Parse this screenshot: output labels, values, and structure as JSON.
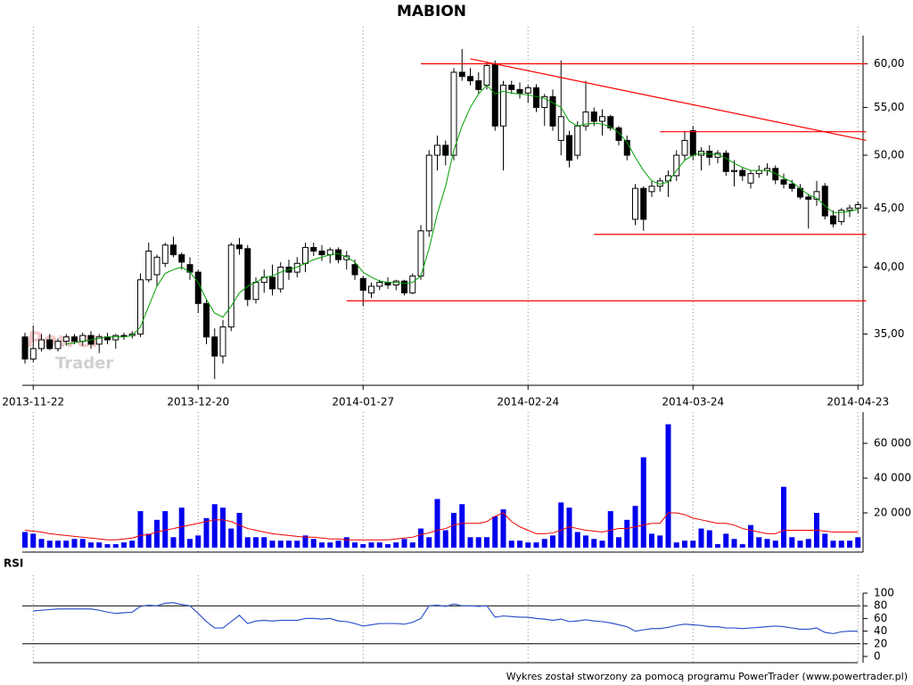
{
  "chart_data": [
    {
      "type": "candlestick",
      "title": "MABION",
      "log_scale": true,
      "ylim": [
        31.6,
        64.6
      ],
      "yticks": [
        {
          "value": 35,
          "label": "35,00"
        },
        {
          "value": 40,
          "label": "40,00"
        },
        {
          "value": 45,
          "label": "45,00"
        },
        {
          "value": 50,
          "label": "50,00"
        },
        {
          "value": 55,
          "label": "55,00"
        },
        {
          "value": 60,
          "label": "60,00"
        }
      ],
      "grid": true,
      "up_color": "#ffffff",
      "down_color": "#000000",
      "categories": [
        null,
        "2013-11-22",
        null,
        null,
        null,
        null,
        null,
        null,
        null,
        null,
        null,
        null,
        null,
        null,
        null,
        null,
        null,
        null,
        null,
        null,
        null,
        "2013-12-20",
        null,
        null,
        null,
        null,
        null,
        null,
        null,
        null,
        null,
        null,
        null,
        null,
        null,
        null,
        null,
        null,
        null,
        null,
        null,
        "2014-01-27",
        null,
        null,
        null,
        null,
        null,
        null,
        null,
        null,
        null,
        null,
        null,
        null,
        null,
        null,
        null,
        null,
        null,
        null,
        null,
        "2014-02-24",
        null,
        null,
        null,
        null,
        null,
        null,
        null,
        null,
        null,
        null,
        null,
        null,
        null,
        null,
        null,
        null,
        null,
        null,
        null,
        "2014-03-24",
        null,
        null,
        null,
        null,
        null,
        null,
        null,
        null,
        null,
        null,
        null,
        null,
        null,
        null,
        null,
        null,
        null,
        null,
        null,
        "2014-04-23"
      ],
      "open": [
        34.8,
        33.3,
        34.0,
        34.6,
        34.0,
        34.5,
        34.8,
        34.5,
        34.9,
        34.3,
        34.8,
        34.6,
        34.9,
        34.9,
        35.0,
        39.0,
        39.4,
        40.3,
        41.8,
        41.0,
        40.2,
        39.6,
        37.2,
        34.8,
        33.5,
        35.5,
        41.8,
        41.5,
        37.5,
        38.8,
        39.2,
        38.3,
        40.0,
        39.6,
        40.3,
        41.6,
        41.3,
        41.0,
        41.4,
        40.6,
        40.2,
        39.1,
        38.0,
        38.5,
        38.8,
        38.6,
        38.9,
        38.0,
        39.3,
        43.0,
        50.0,
        51.0,
        50.0,
        59.0,
        58.5,
        58.0,
        57.5,
        60.0,
        53.0,
        57.5,
        57.0,
        56.6,
        57.2,
        55.0,
        56.2,
        51.5,
        52.0,
        50.0,
        53.0,
        54.5,
        53.5,
        54.0,
        52.8,
        51.5,
        44.0,
        46.8,
        46.5,
        47.0,
        47.5,
        48.0,
        50.0,
        52.5,
        50.0,
        50.4,
        49.8,
        50.2,
        48.4,
        48.5,
        47.3,
        48.2,
        48.5,
        48.7,
        47.6,
        47.2,
        46.8,
        46.0,
        45.8,
        47.0,
        44.3,
        43.8,
        44.8,
        45.0
      ],
      "high": [
        35.1,
        35.6,
        35.0,
        35.0,
        34.7,
        35.0,
        35.0,
        35.1,
        35.2,
        35.0,
        35.1,
        35.0,
        35.1,
        35.2,
        39.5,
        42.0,
        41.0,
        42.0,
        42.5,
        41.2,
        40.8,
        39.8,
        37.5,
        35.4,
        36.0,
        42.0,
        42.4,
        41.8,
        39.2,
        39.8,
        40.2,
        40.4,
        40.6,
        40.8,
        42.0,
        42.0,
        41.8,
        41.6,
        41.6,
        41.3,
        40.6,
        39.3,
        38.8,
        39.0,
        39.2,
        39.0,
        39.0,
        39.5,
        43.5,
        50.5,
        52.0,
        51.5,
        59.5,
        61.8,
        59.5,
        59.0,
        60.2,
        60.4,
        58.0,
        58.0,
        57.8,
        57.5,
        57.6,
        56.5,
        57.0,
        60.4,
        52.5,
        53.5,
        58.0,
        55.0,
        54.8,
        54.2,
        53.0,
        52.0,
        47.2,
        47.0,
        47.5,
        47.8,
        48.5,
        50.5,
        52.5,
        53.0,
        50.8,
        51.0,
        50.5,
        50.5,
        49.5,
        48.8,
        48.5,
        49.0,
        49.2,
        49.0,
        48.2,
        47.6,
        47.2,
        46.3,
        47.5,
        47.3,
        44.8,
        45.0,
        45.3,
        45.6
      ],
      "low": [
        33.0,
        33.1,
        33.8,
        33.9,
        33.8,
        34.2,
        34.3,
        34.2,
        34.0,
        33.7,
        34.3,
        34.0,
        34.6,
        34.7,
        34.8,
        38.8,
        38.5,
        40.0,
        40.8,
        39.8,
        39.0,
        36.5,
        34.3,
        32.0,
        33.0,
        35.2,
        41.0,
        37.0,
        37.2,
        38.0,
        37.8,
        38.0,
        39.0,
        39.2,
        39.6,
        40.9,
        40.5,
        40.3,
        40.3,
        39.8,
        39.0,
        37.0,
        37.6,
        38.2,
        38.3,
        38.2,
        37.8,
        37.9,
        39.0,
        42.5,
        48.5,
        49.0,
        49.5,
        58.0,
        57.5,
        56.5,
        57.0,
        52.5,
        48.5,
        56.5,
        56.0,
        55.5,
        54.5,
        53.0,
        52.5,
        50.0,
        48.8,
        49.6,
        52.5,
        53.0,
        52.0,
        52.5,
        51.0,
        49.5,
        43.5,
        43.0,
        46.0,
        46.5,
        46.0,
        47.5,
        49.5,
        49.5,
        48.5,
        49.0,
        49.2,
        48.0,
        47.0,
        47.5,
        46.8,
        47.8,
        48.0,
        47.2,
        46.8,
        46.5,
        45.8,
        43.2,
        45.2,
        44.0,
        43.3,
        43.5,
        44.2,
        44.5
      ],
      "close": [
        33.3,
        34.0,
        34.6,
        34.0,
        34.5,
        34.8,
        34.5,
        34.9,
        34.3,
        34.8,
        34.6,
        34.9,
        34.9,
        35.0,
        39.0,
        41.3,
        40.8,
        41.8,
        41.0,
        40.4,
        39.6,
        37.2,
        34.8,
        33.5,
        35.5,
        41.8,
        41.5,
        37.5,
        38.8,
        39.2,
        38.3,
        40.0,
        39.6,
        40.3,
        41.6,
        41.3,
        41.0,
        41.4,
        40.6,
        40.9,
        39.4,
        38.2,
        38.5,
        38.8,
        38.6,
        38.9,
        38.0,
        39.3,
        43.0,
        50.0,
        51.0,
        50.0,
        59.0,
        58.5,
        58.0,
        57.0,
        59.8,
        53.0,
        57.5,
        57.0,
        56.6,
        57.2,
        55.0,
        56.2,
        53.0,
        54.0,
        49.5,
        53.0,
        54.5,
        53.5,
        54.0,
        52.8,
        51.5,
        50.0,
        46.8,
        44.0,
        47.0,
        47.5,
        48.0,
        50.0,
        51.5,
        50.0,
        50.4,
        49.8,
        50.2,
        48.4,
        48.5,
        48.0,
        48.2,
        48.5,
        48.7,
        47.6,
        47.2,
        46.8,
        46.0,
        45.8,
        46.5,
        44.3,
        43.6,
        44.8,
        45.0,
        45.3
      ],
      "series": [
        {
          "color": "#00a000",
          "values": [
            null,
            null,
            null,
            null,
            null,
            34.3,
            34.4,
            34.5,
            34.6,
            34.7,
            34.8,
            34.8,
            34.8,
            34.9,
            35.5,
            37.0,
            38.5,
            39.5,
            39.8,
            40.0,
            39.6,
            38.8,
            37.5,
            36.5,
            36.2,
            37.0,
            38.0,
            38.5,
            38.8,
            39.2,
            39.3,
            39.6,
            39.8,
            40.0,
            40.3,
            40.6,
            40.8,
            41.0,
            41.1,
            40.8,
            40.4,
            39.6,
            39.2,
            38.9,
            38.8,
            38.8,
            38.7,
            38.8,
            39.3,
            41.5,
            44.5,
            47.0,
            50.5,
            53.0,
            55.0,
            56.5,
            57.5,
            56.5,
            56.8,
            56.6,
            56.5,
            56.4,
            56.2,
            56.0,
            55.5,
            55.0,
            53.5,
            53.0,
            53.2,
            53.3,
            53.2,
            52.9,
            52.3,
            51.3,
            49.8,
            48.5,
            47.5,
            47.2,
            47.4,
            48.5,
            49.5,
            50.0,
            50.2,
            50.1,
            50.1,
            49.7,
            49.2,
            48.8,
            48.5,
            48.5,
            48.5,
            48.2,
            47.8,
            47.4,
            46.8,
            46.2,
            45.9,
            45.2,
            44.6,
            44.6,
            44.7,
            44.9
          ]
        }
      ],
      "trend_lines": [
        {
          "color": "#ff0000",
          "x": [
            48,
            102
          ],
          "y": [
            60.0,
            60.0
          ]
        },
        {
          "color": "#ff0000",
          "x": [
            54,
            102
          ],
          "y": [
            60.6,
            51.5
          ]
        },
        {
          "color": "#ff0000",
          "x": [
            77,
            102
          ],
          "y": [
            52.4,
            52.4
          ]
        },
        {
          "color": "#ff0000",
          "x": [
            69,
            102
          ],
          "y": [
            42.7,
            42.7
          ]
        },
        {
          "color": "#ff0000",
          "x": [
            39,
            102
          ],
          "y": [
            37.4,
            37.4
          ]
        }
      ]
    },
    {
      "type": "bar",
      "ylim": [
        0,
        78000
      ],
      "yticks": [
        {
          "value": 20000,
          "label": "20 000"
        },
        {
          "value": 40000,
          "label": "40 000"
        },
        {
          "value": 60000,
          "label": "60 000"
        }
      ],
      "series": [
        {
          "type": "bar",
          "color": "#0000ee",
          "values": [
            9000,
            8000,
            5000,
            4000,
            4000,
            4000,
            5000,
            5000,
            3000,
            3000,
            2000,
            2000,
            3000,
            4000,
            21000,
            8000,
            16000,
            21000,
            6000,
            23000,
            5000,
            7000,
            17000,
            25000,
            23000,
            11000,
            20000,
            6000,
            6000,
            6000,
            4000,
            4000,
            4000,
            4000,
            7000,
            5000,
            3000,
            3000,
            4000,
            6000,
            3000,
            2000,
            3000,
            3000,
            2000,
            3000,
            5000,
            3000,
            11000,
            6000,
            28000,
            10000,
            20000,
            25000,
            6000,
            6000,
            6000,
            18000,
            22000,
            4000,
            4000,
            3000,
            3000,
            5000,
            7000,
            26000,
            23000,
            9000,
            7000,
            5000,
            4000,
            21000,
            6000,
            16000,
            24000,
            52000,
            8000,
            7000,
            71000,
            3000,
            4000,
            4000,
            11000,
            10000,
            2000,
            8000,
            5000,
            2000,
            13000,
            6000,
            5000,
            4000,
            35000,
            6000,
            4000,
            5000,
            20000,
            8000,
            4000,
            4000,
            4000,
            6000
          ]
        },
        {
          "type": "line",
          "color": "#ee0000",
          "values": [
            10000,
            9500,
            9000,
            8000,
            7500,
            7000,
            6500,
            6000,
            5500,
            5000,
            4500,
            4500,
            5000,
            5500,
            7000,
            7500,
            9000,
            10000,
            11000,
            12000,
            13000,
            14000,
            15000,
            16000,
            16000,
            15000,
            13000,
            11000,
            10000,
            9000,
            8000,
            7500,
            7000,
            6500,
            6000,
            6000,
            5500,
            5000,
            5000,
            4500,
            4500,
            4500,
            4500,
            4500,
            4500,
            5000,
            5500,
            6000,
            7500,
            8500,
            10000,
            11000,
            13000,
            14000,
            14000,
            14000,
            15000,
            18000,
            20000,
            15000,
            12000,
            10000,
            8000,
            8000,
            8500,
            10000,
            12000,
            11000,
            10000,
            9500,
            9000,
            10000,
            11000,
            11000,
            12000,
            13000,
            14000,
            14000,
            20000,
            20000,
            19000,
            17000,
            16000,
            15000,
            14000,
            14000,
            13000,
            11000,
            10000,
            9000,
            8000,
            8000,
            10000,
            10000,
            10000,
            10000,
            10000,
            9500,
            9000,
            9000,
            9000,
            9000
          ]
        }
      ]
    },
    {
      "type": "line",
      "title": "RSI",
      "ylim": [
        0,
        100
      ],
      "yticks": [
        0,
        20,
        40,
        60,
        80,
        100
      ],
      "ref_lines": [
        20,
        80
      ],
      "series": [
        {
          "color": "#3355cc",
          "values": [
            null,
            72,
            73,
            74,
            75,
            75,
            75,
            75,
            75,
            73,
            70,
            68,
            69,
            70,
            79,
            81,
            80,
            84,
            85,
            82,
            80,
            68,
            55,
            45,
            45,
            55,
            65,
            52,
            56,
            57,
            56,
            57,
            57,
            57,
            60,
            60,
            59,
            60,
            56,
            55,
            52,
            48,
            50,
            52,
            52,
            52,
            51,
            54,
            60,
            80,
            81,
            79,
            83,
            80,
            80,
            79,
            80,
            62,
            64,
            63,
            62,
            62,
            60,
            59,
            57,
            59,
            55,
            56,
            58,
            56,
            55,
            53,
            50,
            47,
            40,
            42,
            44,
            44,
            46,
            49,
            51,
            50,
            49,
            47,
            47,
            45,
            45,
            44,
            45,
            46,
            47,
            48,
            47,
            45,
            43,
            43,
            45,
            38,
            36,
            39,
            40,
            40
          ]
        }
      ]
    }
  ],
  "watermark": {
    "line1": "Power",
    "line2": "Trader"
  },
  "footer": "Wykres został stworzony za pomocą programu PowerTrader (www.powertrader.pl)"
}
